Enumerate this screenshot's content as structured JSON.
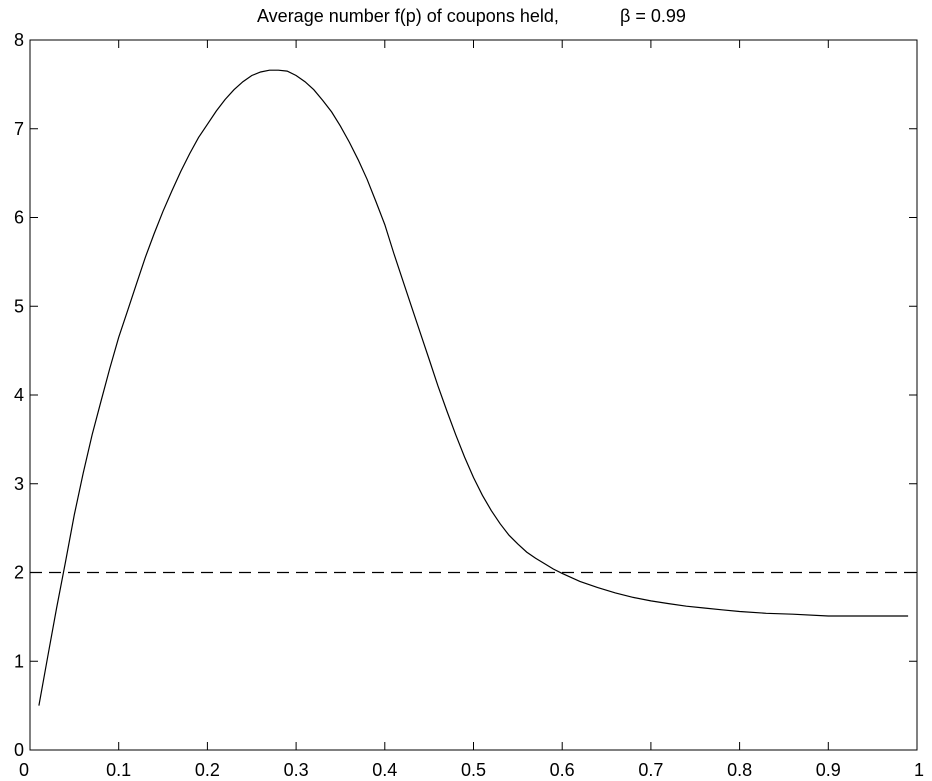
{
  "chart_data": {
    "type": "line",
    "title": "Average number f(p) of coupons held,",
    "title_overlay": "β = 0.99",
    "xlabel": "",
    "ylabel": "",
    "xlim": [
      0,
      1
    ],
    "ylim": [
      0,
      8
    ],
    "x_ticks": [
      "0",
      "0.1",
      "0.2",
      "0.3",
      "0.4",
      "0.5",
      "0.6",
      "0.7",
      "0.8",
      "0.9",
      "1"
    ],
    "y_ticks": [
      "0",
      "1",
      "2",
      "3",
      "4",
      "5",
      "6",
      "7",
      "8"
    ],
    "grid": false,
    "colors": {
      "line": "#000000",
      "axes": "#000000",
      "background": "#ffffff"
    },
    "series": [
      {
        "style": "solid",
        "x": [
          0.01,
          0.02,
          0.03,
          0.04,
          0.05,
          0.06,
          0.07,
          0.08,
          0.09,
          0.1,
          0.11,
          0.12,
          0.13,
          0.14,
          0.15,
          0.16,
          0.17,
          0.18,
          0.19,
          0.2,
          0.21,
          0.22,
          0.23,
          0.24,
          0.25,
          0.26,
          0.27,
          0.28,
          0.29,
          0.3,
          0.31,
          0.32,
          0.33,
          0.34,
          0.35,
          0.36,
          0.37,
          0.38,
          0.39,
          0.4,
          0.41,
          0.42,
          0.43,
          0.44,
          0.45,
          0.46,
          0.47,
          0.48,
          0.49,
          0.5,
          0.51,
          0.52,
          0.53,
          0.54,
          0.55,
          0.56,
          0.57,
          0.58,
          0.59,
          0.6,
          0.62,
          0.64,
          0.66,
          0.68,
          0.7,
          0.72,
          0.74,
          0.76,
          0.78,
          0.8,
          0.83,
          0.86,
          0.9,
          0.95,
          0.99
        ],
        "y": [
          0.5,
          1.05,
          1.6,
          2.12,
          2.65,
          3.12,
          3.55,
          3.93,
          4.3,
          4.65,
          4.95,
          5.25,
          5.55,
          5.82,
          6.07,
          6.3,
          6.52,
          6.72,
          6.9,
          7.05,
          7.2,
          7.33,
          7.44,
          7.53,
          7.6,
          7.64,
          7.66,
          7.66,
          7.65,
          7.6,
          7.53,
          7.44,
          7.32,
          7.19,
          7.03,
          6.85,
          6.65,
          6.43,
          6.18,
          5.92,
          5.6,
          5.3,
          5.0,
          4.7,
          4.4,
          4.1,
          3.82,
          3.55,
          3.3,
          3.07,
          2.87,
          2.7,
          2.55,
          2.42,
          2.32,
          2.23,
          2.16,
          2.1,
          2.04,
          1.99,
          1.9,
          1.83,
          1.77,
          1.72,
          1.68,
          1.65,
          1.62,
          1.6,
          1.58,
          1.56,
          1.54,
          1.53,
          1.51,
          1.51,
          1.51
        ]
      },
      {
        "style": "dashed",
        "x": [
          0,
          1
        ],
        "y": [
          2,
          2
        ]
      }
    ]
  }
}
